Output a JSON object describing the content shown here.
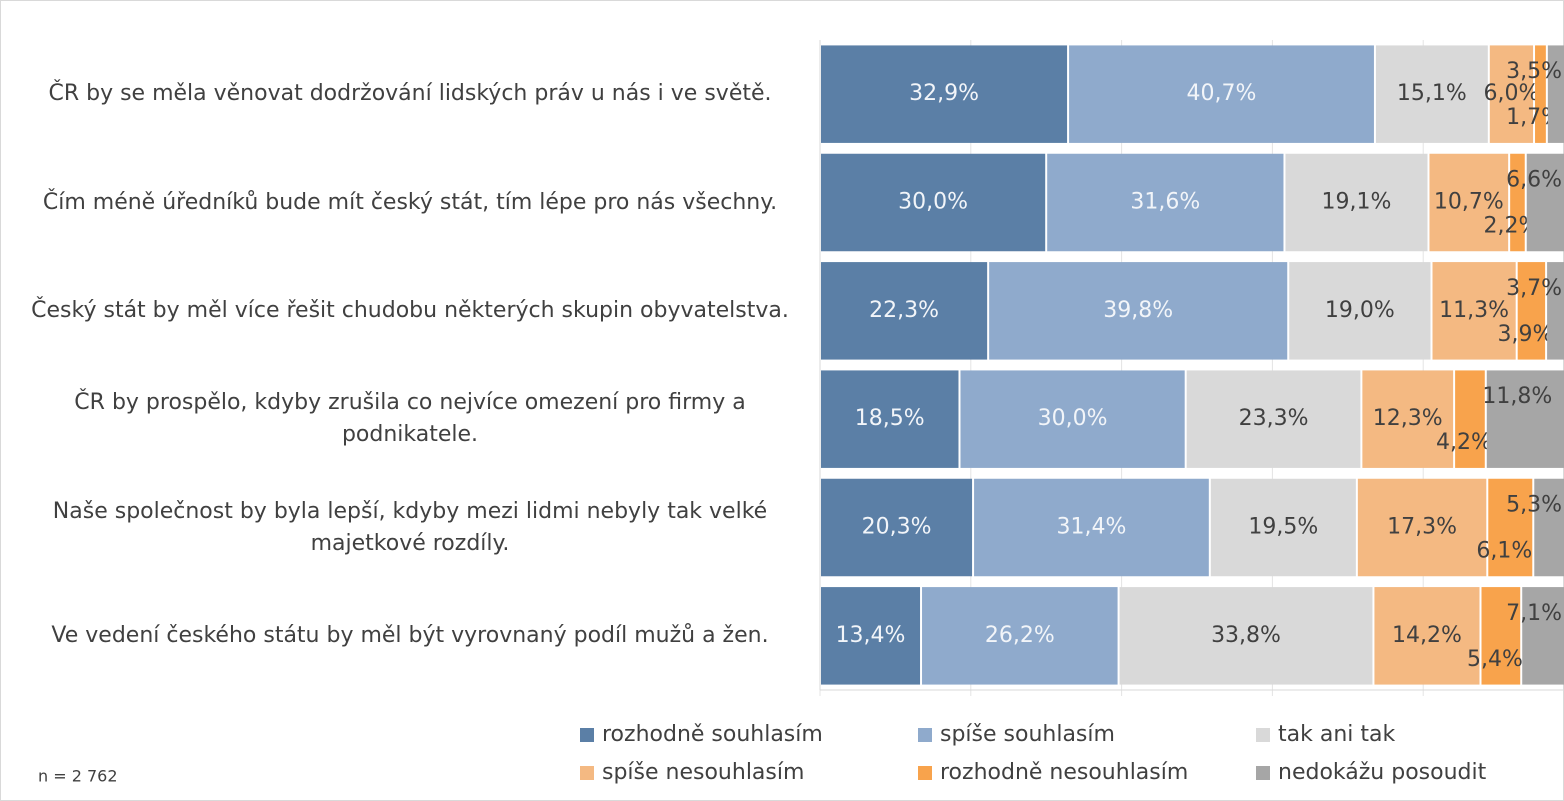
{
  "chart_data": {
    "type": "stacked_bar_horizontal",
    "categories": [
      "ČR by se měla věnovat dodržování lidských práv u nás i ve světě.",
      "Čím méně úředníků bude mít český stát, tím lépe pro nás všechny.",
      "Český stát by měl více řešit chudobu některých skupin obyvatelstva.",
      "ČR by prospělo, kdyby zrušila co nejvíce omezení pro firmy a podnikatele.",
      "Naše společnost by byla lepší, kdyby mezi lidmi nebyly tak velké majetkové rozdíly.",
      "Ve vedení českého státu by měl být vyrovnaný podíl mužů a žen."
    ],
    "series": [
      {
        "name": "rozhodně souhlasím",
        "color": "#5b7fa6",
        "values": [
          32.9,
          30.0,
          22.3,
          18.5,
          20.3,
          13.4
        ],
        "value_labels": [
          "32,9%",
          "30,0%",
          "22,3%",
          "18,5%",
          "20,3%",
          "13,4%"
        ]
      },
      {
        "name": "spíše souhlasím",
        "color": "#8faacc",
        "values": [
          40.7,
          31.6,
          39.8,
          30.0,
          31.4,
          26.2
        ],
        "value_labels": [
          "40,7%",
          "31,6%",
          "39,8%",
          "30,0%",
          "31,4%",
          "26,2%"
        ]
      },
      {
        "name": "tak ani tak",
        "color": "#d9d9d9",
        "values": [
          15.1,
          19.1,
          19.0,
          23.3,
          19.5,
          33.8
        ],
        "value_labels": [
          "15,1%",
          "19,1%",
          "19,0%",
          "23,3%",
          "19,5%",
          "33,8%"
        ]
      },
      {
        "name": "spíše nesouhlasím",
        "color": "#f4b982",
        "values": [
          6.0,
          10.7,
          11.3,
          12.3,
          17.3,
          14.2
        ],
        "value_labels": [
          "6,0%",
          "10,7%",
          "11,3%",
          "12,3%",
          "17,3%",
          "14,2%"
        ]
      },
      {
        "name": "rozhodně nesouhlasím",
        "color": "#f8a34c",
        "values": [
          1.7,
          2.2,
          3.9,
          4.2,
          6.1,
          5.4
        ],
        "value_labels": [
          "1,7%",
          "2,2%",
          "3,9%",
          "4,2%",
          "6,1%",
          "5,4%"
        ]
      },
      {
        "name": "nedokážu posoudit",
        "color": "#a6a6a6",
        "values": [
          3.5,
          6.6,
          3.7,
          11.8,
          5.3,
          7.1
        ],
        "value_labels": [
          "3,5%",
          "6,6%",
          "3,7%",
          "11,8%",
          "5,3%",
          "7,1%"
        ]
      }
    ],
    "xlim": [
      0,
      100
    ],
    "xticks": [
      0,
      20,
      40,
      60,
      80,
      100
    ],
    "note": "n = 2 762"
  }
}
